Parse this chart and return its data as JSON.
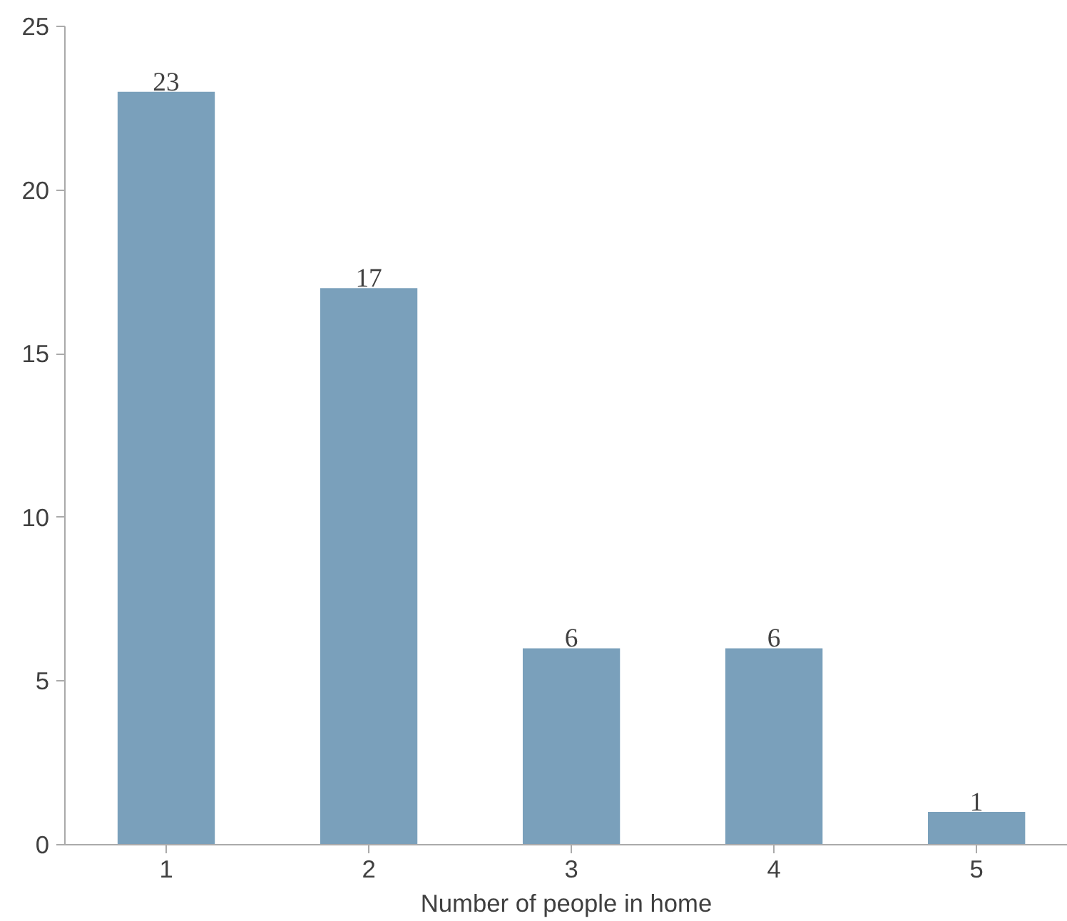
{
  "chart_data": {
    "type": "bar",
    "xlabel": "Number of people in home",
    "categories": [
      "1",
      "2",
      "3",
      "4",
      "5"
    ],
    "values": [
      23,
      17,
      6,
      6,
      1
    ],
    "color": "#7aa0bb",
    "ylim": [
      0,
      25
    ],
    "yticks": [
      0,
      5,
      10,
      15,
      20,
      25
    ],
    "grid": false,
    "data_labels": true
  }
}
